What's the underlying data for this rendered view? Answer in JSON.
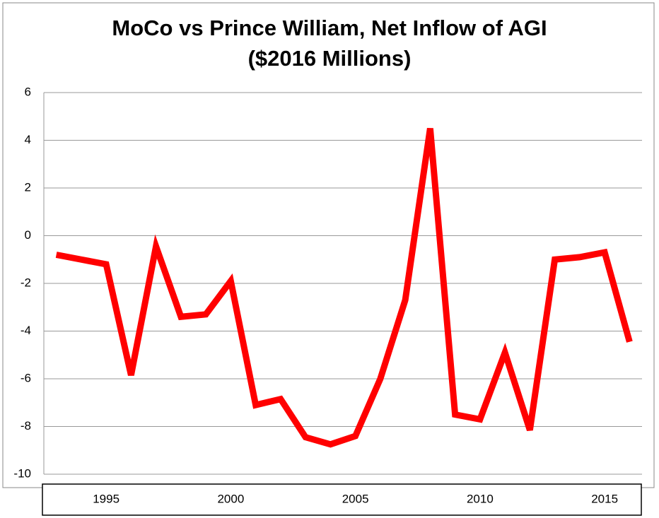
{
  "chart_data": {
    "type": "line",
    "title": [
      "MoCo vs Prince William, Net Inflow of AGI",
      "($2016 Millions)"
    ],
    "x": [
      1993,
      1994,
      1995,
      1996,
      1997,
      1998,
      1999,
      2000,
      2001,
      2002,
      2003,
      2004,
      2005,
      2006,
      2007,
      2008,
      2009,
      2010,
      2011,
      2012,
      2013,
      2014,
      2015,
      2016
    ],
    "series": [
      {
        "name": "Net Inflow of AGI",
        "color": "#ff0000",
        "values": [
          -0.8,
          -1.0,
          -1.2,
          -5.85,
          -0.45,
          -3.4,
          -3.3,
          -1.9,
          -7.1,
          -6.85,
          -8.45,
          -8.75,
          -8.4,
          -6.0,
          -2.7,
          4.5,
          -7.5,
          -7.7,
          -4.9,
          -8.15,
          -1.0,
          -0.9,
          -0.7,
          -4.45
        ]
      }
    ],
    "xlim": [
      1992.5,
      2016.5
    ],
    "xticks": [
      1995,
      2000,
      2005,
      2010,
      2015
    ],
    "ylim": [
      -10,
      6
    ],
    "yticks": [
      -10,
      -8,
      -6,
      -4,
      -2,
      0,
      2,
      4,
      6
    ],
    "grid": true
  }
}
